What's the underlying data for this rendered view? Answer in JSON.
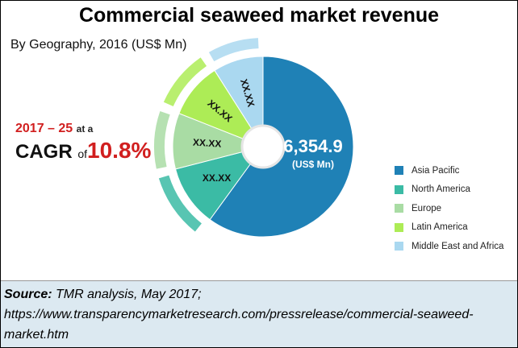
{
  "title": "Commercial seaweed market revenue",
  "subtitle": "By Geography, 2016 (US$ Mn)",
  "cagr": {
    "years": "2017 – 25",
    "at_a": "at a",
    "label": "CAGR",
    "of": "of",
    "rate": "10.8%"
  },
  "colors": {
    "asia_pacific": "#1f81b6",
    "north_america": "#3bbba5",
    "europe": "#a9dca4",
    "latin_america": "#adec56",
    "middle_east_africa": "#aad8f0",
    "accent_red": "#d11f1f",
    "source_bg": "#dce9f1"
  },
  "chart_data": {
    "type": "pie",
    "title": "Commercial seaweed market revenue",
    "subtitle": "By Geography, 2016 (US$ Mn)",
    "center_label": "6,354.9",
    "center_unit": "(US$ Mn)",
    "legend_position": "right",
    "slices": [
      {
        "name": "Asia Pacific",
        "share": 0.6,
        "label": "",
        "color": "#1f81b6"
      },
      {
        "name": "North America",
        "share": 0.11,
        "label": "XX.XX",
        "color": "#3bbba5"
      },
      {
        "name": "Europe",
        "share": 0.1,
        "label": "XX.XX",
        "color": "#a9dca4"
      },
      {
        "name": "Latin America",
        "share": 0.1,
        "label": "XX.XX",
        "color": "#adec56"
      },
      {
        "name": "Middle East and Africa",
        "share": 0.09,
        "label": "XX.XX",
        "color": "#aad8f0"
      }
    ]
  },
  "source": {
    "label": "Source:",
    "text": "TMR analysis, May 2017; https://www.transparencymarketresearch.com/pressrelease/commercial-seaweed-market.htm"
  }
}
